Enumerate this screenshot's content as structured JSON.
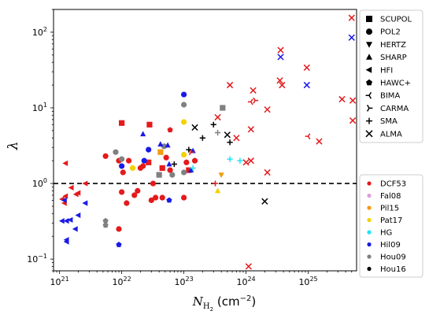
{
  "chart_data": {
    "type": "scatter",
    "xlabel_main": "N",
    "xlabel_sub": "H",
    "xlabel_subsub": "2",
    "xlabel_unit": " (cm",
    "xlabel_exp": "−2",
    "xlabel_close": ")",
    "ylabel": "λ",
    "xscale": "log",
    "yscale": "log",
    "xlim": [
      8e+20,
      6e+25
    ],
    "ylim": [
      0.07,
      200
    ],
    "hline": 1,
    "x_ticks": [
      {
        "v": 1e+21,
        "base": "10",
        "exp": "21"
      },
      {
        "v": 1e+22,
        "base": "10",
        "exp": "22"
      },
      {
        "v": 1e+23,
        "base": "10",
        "exp": "23"
      },
      {
        "v": 1e+24,
        "base": "10",
        "exp": "24"
      },
      {
        "v": 1e+25,
        "base": "10",
        "exp": "25"
      }
    ],
    "y_ticks": [
      {
        "v": 0.1,
        "base": "10",
        "exp": "−1"
      },
      {
        "v": 1,
        "base": "10",
        "exp": "0"
      },
      {
        "v": 10,
        "base": "10",
        "exp": "1"
      },
      {
        "v": 100,
        "base": "10",
        "exp": "2"
      }
    ],
    "legend_markers_title_position": "upper right",
    "legend_markers": [
      {
        "label": "SCUPOL",
        "marker": "square"
      },
      {
        "label": "POL2",
        "marker": "circle"
      },
      {
        "label": "HERTZ",
        "marker": "triangle-down"
      },
      {
        "label": "SHARP",
        "marker": "triangle-up"
      },
      {
        "label": "HFI",
        "marker": "triangle-left"
      },
      {
        "label": "HAWC+",
        "marker": "pentagon"
      },
      {
        "label": "BIMA",
        "marker": "tri-left"
      },
      {
        "label": "CARMA",
        "marker": "tri-right"
      },
      {
        "label": "SMA",
        "marker": "plus"
      },
      {
        "label": "ALMA",
        "marker": "x"
      }
    ],
    "legend_colors_position": "lower right",
    "legend_colors": [
      {
        "label": "DCF53",
        "color": "#e41a1c"
      },
      {
        "label": "Fal08",
        "color": "#dda0dd"
      },
      {
        "label": "Pil15",
        "color": "#f39c12"
      },
      {
        "label": "Pat17",
        "color": "#f5d000"
      },
      {
        "label": "HG",
        "color": "#22e4f0"
      },
      {
        "label": "Hil09",
        "color": "#1a1ae6"
      },
      {
        "label": "Hou09",
        "color": "#808080"
      },
      {
        "label": "Hou16",
        "color": "#000000"
      }
    ],
    "points": [
      {
        "x": 1e+22,
        "y": 6.3,
        "m": "square",
        "c": "#e41a1c"
      },
      {
        "x": 2.8e+22,
        "y": 6.0,
        "m": "square",
        "c": "#e41a1c"
      },
      {
        "x": 2.7e+22,
        "y": 1.9,
        "m": "square",
        "c": "#e41a1c"
      },
      {
        "x": 4.2e+22,
        "y": 2.6,
        "m": "square",
        "c": "#f39c12"
      },
      {
        "x": 4.5e+22,
        "y": 1.6,
        "m": "square",
        "c": "#e41a1c"
      },
      {
        "x": 4e+22,
        "y": 1.3,
        "m": "square",
        "c": "#808080"
      },
      {
        "x": 4.2e+23,
        "y": 10.0,
        "m": "square",
        "c": "#808080"
      },
      {
        "x": 1.2e+23,
        "y": 1.5,
        "m": "square",
        "c": "#e41a1c"
      },
      {
        "x": 5.5e+21,
        "y": 2.3,
        "m": "circle",
        "c": "#e41a1c"
      },
      {
        "x": 9e+21,
        "y": 2.0,
        "m": "circle",
        "c": "#e41a1c"
      },
      {
        "x": 1e+22,
        "y": 1.7,
        "m": "circle",
        "c": "#1a1ae6"
      },
      {
        "x": 1.05e+22,
        "y": 1.4,
        "m": "circle",
        "c": "#e41a1c"
      },
      {
        "x": 1e+22,
        "y": 0.77,
        "m": "circle",
        "c": "#e41a1c"
      },
      {
        "x": 1.2e+22,
        "y": 0.55,
        "m": "circle",
        "c": "#e41a1c"
      },
      {
        "x": 1e+22,
        "y": 2.1,
        "m": "circle",
        "c": "#808080"
      },
      {
        "x": 1.3e+22,
        "y": 2.0,
        "m": "circle",
        "c": "#e41a1c"
      },
      {
        "x": 1.5e+22,
        "y": 1.6,
        "m": "circle",
        "c": "#f5d000"
      },
      {
        "x": 1.6e+22,
        "y": 0.7,
        "m": "circle",
        "c": "#e41a1c"
      },
      {
        "x": 1.8e+22,
        "y": 0.8,
        "m": "circle",
        "c": "#e41a1c"
      },
      {
        "x": 2e+22,
        "y": 1.6,
        "m": "circle",
        "c": "#e41a1c"
      },
      {
        "x": 2.2e+22,
        "y": 1.7,
        "m": "circle",
        "c": "#e41a1c"
      },
      {
        "x": 2.3e+22,
        "y": 2.0,
        "m": "circle",
        "c": "#1a1ae6"
      },
      {
        "x": 2.7e+22,
        "y": 2.8,
        "m": "circle",
        "c": "#1a1ae6"
      },
      {
        "x": 3e+22,
        "y": 0.6,
        "m": "circle",
        "c": "#e41a1c"
      },
      {
        "x": 3.2e+22,
        "y": 1.0,
        "m": "circle",
        "c": "#e41a1c"
      },
      {
        "x": 3.5e+22,
        "y": 0.65,
        "m": "circle",
        "c": "#e41a1c"
      },
      {
        "x": 4.5e+22,
        "y": 0.65,
        "m": "circle",
        "c": "#e41a1c"
      },
      {
        "x": 4.8e+22,
        "y": 3.1,
        "m": "circle",
        "c": "#808080"
      },
      {
        "x": 5.2e+22,
        "y": 2.2,
        "m": "circle",
        "c": "#e41a1c"
      },
      {
        "x": 6e+22,
        "y": 1.5,
        "m": "circle",
        "c": "#e41a1c"
      },
      {
        "x": 6.5e+22,
        "y": 1.3,
        "m": "circle",
        "c": "#808080"
      },
      {
        "x": 1e+23,
        "y": 15.0,
        "m": "circle",
        "c": "#1a1ae6"
      },
      {
        "x": 1e+23,
        "y": 11.0,
        "m": "circle",
        "c": "#808080"
      },
      {
        "x": 1e+23,
        "y": 6.5,
        "m": "circle",
        "c": "#f5d000"
      },
      {
        "x": 1e+23,
        "y": 2.4,
        "m": "circle",
        "c": "#f5d000"
      },
      {
        "x": 1e+23,
        "y": 1.4,
        "m": "circle",
        "c": "#808080"
      },
      {
        "x": 1e+23,
        "y": 0.65,
        "m": "circle",
        "c": "#e41a1c"
      },
      {
        "x": 1.1e+23,
        "y": 1.9,
        "m": "circle",
        "c": "#e41a1c"
      },
      {
        "x": 1.5e+23,
        "y": 2.0,
        "m": "circle",
        "c": "#e41a1c"
      },
      {
        "x": 9e+21,
        "y": 0.25,
        "m": "circle",
        "c": "#e41a1c"
      },
      {
        "x": 8e+21,
        "y": 2.6,
        "m": "circle",
        "c": "#808080"
      },
      {
        "x": 4e+23,
        "y": 1.3,
        "m": "triangle-down",
        "c": "#f39c12"
      },
      {
        "x": 2.2e+22,
        "y": 4.5,
        "m": "triangle-up",
        "c": "#1a1ae6"
      },
      {
        "x": 4.2e+22,
        "y": 3.3,
        "m": "triangle-up",
        "c": "#1a1ae6"
      },
      {
        "x": 5.5e+22,
        "y": 3.2,
        "m": "triangle-up",
        "c": "#1a1ae6"
      },
      {
        "x": 5.8e+22,
        "y": 1.8,
        "m": "triangle-up",
        "c": "#1a1ae6"
      },
      {
        "x": 1.3e+23,
        "y": 1.5,
        "m": "triangle-up",
        "c": "#1a1ae6"
      },
      {
        "x": 1.4e+23,
        "y": 2.7,
        "m": "triangle-up",
        "c": "#1a1ae6"
      },
      {
        "x": 3.5e+23,
        "y": 0.8,
        "m": "triangle-up",
        "c": "#f5d000"
      },
      {
        "x": 1.25e+21,
        "y": 1.85,
        "m": "triangle-left",
        "c": "#e41a1c"
      },
      {
        "x": 1.1e+21,
        "y": 0.62,
        "m": "triangle-left",
        "c": "#e41a1c"
      },
      {
        "x": 1.2e+21,
        "y": 0.55,
        "m": "triangle-left",
        "c": "#e41a1c"
      },
      {
        "x": 1.25e+21,
        "y": 0.68,
        "m": "triangle-left",
        "c": "#e41a1c"
      },
      {
        "x": 1.55e+21,
        "y": 0.88,
        "m": "triangle-left",
        "c": "#e41a1c"
      },
      {
        "x": 1.85e+21,
        "y": 0.72,
        "m": "triangle-left",
        "c": "#e41a1c"
      },
      {
        "x": 2e+21,
        "y": 0.75,
        "m": "triangle-left",
        "c": "#e41a1c"
      },
      {
        "x": 2.6e+21,
        "y": 1.0,
        "m": "triangle-left",
        "c": "#e41a1c"
      },
      {
        "x": 1.1e+21,
        "y": 0.32,
        "m": "triangle-left",
        "c": "#1a1ae6"
      },
      {
        "x": 1.3e+21,
        "y": 0.32,
        "m": "triangle-left",
        "c": "#1a1ae6"
      },
      {
        "x": 1.5e+21,
        "y": 0.33,
        "m": "triangle-left",
        "c": "#1a1ae6"
      },
      {
        "x": 1.3e+21,
        "y": 0.18,
        "m": "triangle-left",
        "c": "#1a1ae6"
      },
      {
        "x": 1.3e+21,
        "y": 0.17,
        "m": "triangle-left",
        "c": "#1a1ae6"
      },
      {
        "x": 1.8e+21,
        "y": 0.25,
        "m": "triangle-left",
        "c": "#1a1ae6"
      },
      {
        "x": 2e+21,
        "y": 0.38,
        "m": "triangle-left",
        "c": "#1a1ae6"
      },
      {
        "x": 2.6e+21,
        "y": 0.55,
        "m": "triangle-left",
        "c": "#1a1ae6"
      },
      {
        "x": 1.2e+21,
        "y": 0.6,
        "m": "triangle-left",
        "c": "#1a1ae6"
      },
      {
        "x": 9e+21,
        "y": 0.155,
        "m": "pentagon",
        "c": "#1a1ae6"
      },
      {
        "x": 5.5e+21,
        "y": 0.32,
        "m": "pentagon",
        "c": "#808080"
      },
      {
        "x": 5.5e+21,
        "y": 0.28,
        "m": "pentagon",
        "c": "#808080"
      },
      {
        "x": 5.8e+22,
        "y": 0.6,
        "m": "pentagon",
        "c": "#1a1ae6"
      },
      {
        "x": 6e+22,
        "y": 5.1,
        "m": "pentagon",
        "c": "#e41a1c"
      },
      {
        "x": 1.2e+24,
        "y": 12.0,
        "m": "tri-left",
        "c": "#e41a1c"
      },
      {
        "x": 1e+25,
        "y": 4.2,
        "m": "tri-left",
        "c": "#e41a1c"
      },
      {
        "x": 1.4e+24,
        "y": 12.5,
        "m": "tri-right",
        "c": "#e41a1c"
      },
      {
        "x": 1.3e+23,
        "y": 2.6,
        "m": "tri-right",
        "c": "#e41a1c"
      },
      {
        "x": 7e+22,
        "y": 1.8,
        "m": "plus",
        "c": "#000000"
      },
      {
        "x": 2e+23,
        "y": 4.0,
        "m": "plus",
        "c": "#000000"
      },
      {
        "x": 3e+23,
        "y": 6.0,
        "m": "plus",
        "c": "#000000"
      },
      {
        "x": 3.5e+23,
        "y": 4.7,
        "m": "plus",
        "c": "#808080"
      },
      {
        "x": 1.2e+23,
        "y": 2.8,
        "m": "plus",
        "c": "#000000"
      },
      {
        "x": 5.5e+23,
        "y": 3.5,
        "m": "plus",
        "c": "#000000"
      },
      {
        "x": 5.5e+23,
        "y": 2.1,
        "m": "plus",
        "c": "#22e4f0"
      },
      {
        "x": 8e+23,
        "y": 2.0,
        "m": "plus",
        "c": "#22e4f0"
      },
      {
        "x": 1.4e+23,
        "y": 1.6,
        "m": "plus",
        "c": "#22e4f0"
      },
      {
        "x": 3.2e+23,
        "y": 1.0,
        "m": "plus",
        "c": "#e41a1c"
      },
      {
        "x": 1.5e+23,
        "y": 5.5,
        "m": "x",
        "c": "#000000"
      },
      {
        "x": 5e+23,
        "y": 4.4,
        "m": "x",
        "c": "#000000"
      },
      {
        "x": 2e+24,
        "y": 0.58,
        "m": "x",
        "c": "#000000"
      },
      {
        "x": 3.5e+23,
        "y": 7.5,
        "m": "x",
        "c": "#e41a1c"
      },
      {
        "x": 5.5e+23,
        "y": 20.0,
        "m": "x",
        "c": "#e41a1c"
      },
      {
        "x": 7e+23,
        "y": 4.0,
        "m": "x",
        "c": "#e41a1c"
      },
      {
        "x": 1e+24,
        "y": 1.9,
        "m": "x",
        "c": "#e41a1c"
      },
      {
        "x": 1.2e+24,
        "y": 2.0,
        "m": "x",
        "c": "#e41a1c"
      },
      {
        "x": 1.2e+24,
        "y": 5.2,
        "m": "x",
        "c": "#e41a1c"
      },
      {
        "x": 1.3e+24,
        "y": 17.0,
        "m": "x",
        "c": "#e41a1c"
      },
      {
        "x": 1.1e+24,
        "y": 0.08,
        "m": "x",
        "c": "#e41a1c"
      },
      {
        "x": 2.2e+24,
        "y": 9.5,
        "m": "x",
        "c": "#e41a1c"
      },
      {
        "x": 2.2e+24,
        "y": 1.4,
        "m": "x",
        "c": "#e41a1c"
      },
      {
        "x": 3.5e+24,
        "y": 23.0,
        "m": "x",
        "c": "#e41a1c"
      },
      {
        "x": 3.8e+24,
        "y": 20.0,
        "m": "x",
        "c": "#e41a1c"
      },
      {
        "x": 3.6e+24,
        "y": 58.0,
        "m": "x",
        "c": "#e41a1c"
      },
      {
        "x": 3.6e+24,
        "y": 47.0,
        "m": "x",
        "c": "#1a1ae6"
      },
      {
        "x": 9.5e+24,
        "y": 34.0,
        "m": "x",
        "c": "#e41a1c"
      },
      {
        "x": 9.5e+24,
        "y": 20.0,
        "m": "x",
        "c": "#1a1ae6"
      },
      {
        "x": 1.5e+25,
        "y": 3.6,
        "m": "x",
        "c": "#e41a1c"
      },
      {
        "x": 3.5e+25,
        "y": 13.0,
        "m": "x",
        "c": "#e41a1c"
      },
      {
        "x": 5e+25,
        "y": 155.0,
        "m": "x",
        "c": "#e41a1c"
      },
      {
        "x": 5e+25,
        "y": 85.0,
        "m": "x",
        "c": "#1a1ae6"
      },
      {
        "x": 5.2e+25,
        "y": 12.5,
        "m": "x",
        "c": "#e41a1c"
      },
      {
        "x": 5.2e+25,
        "y": 6.8,
        "m": "x",
        "c": "#e41a1c"
      }
    ]
  }
}
